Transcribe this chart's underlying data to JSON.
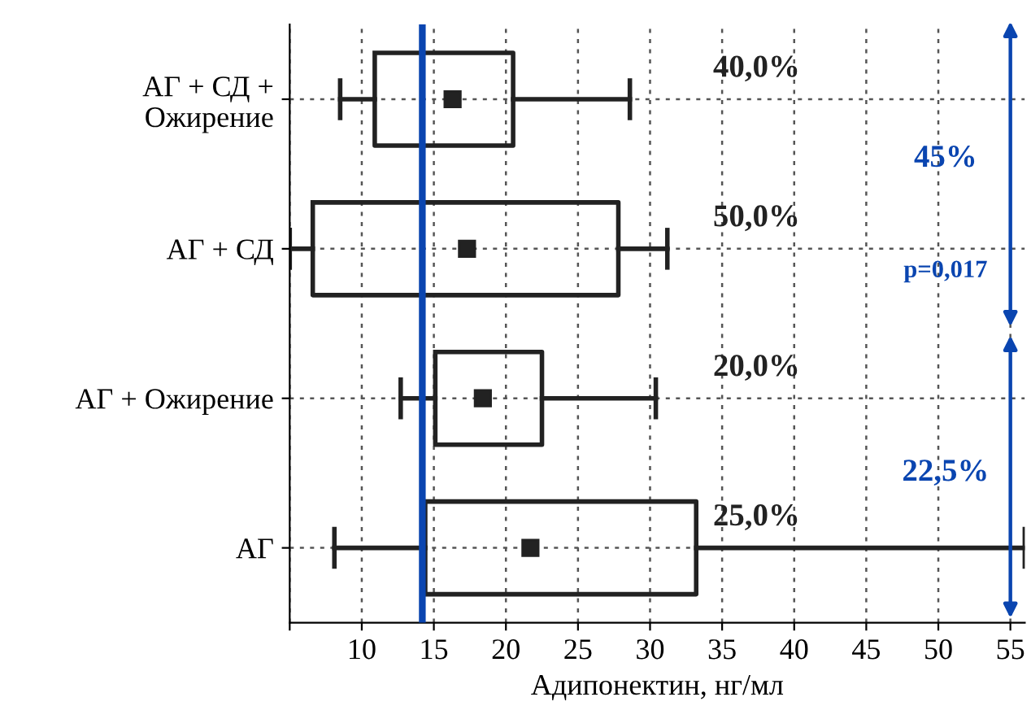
{
  "chart_data": {
    "type": "box",
    "orientation": "horizontal",
    "xlabel": "Адипонектин, нг/мл",
    "categories": [
      "АГ + СД +\nОжирение",
      "АГ + СД",
      "АГ + Ожирение",
      "АГ"
    ],
    "boxes": [
      {
        "low": 8.5,
        "q1": 10.9,
        "median": 16.3,
        "q3": 20.5,
        "high": 28.6
      },
      {
        "low": 5,
        "q1": 6.6,
        "median": 17.3,
        "q3": 27.8,
        "high": 31.2
      },
      {
        "low": 12.7,
        "q1": 15.1,
        "median": 18.4,
        "q3": 22.5,
        "high": 30.4
      },
      {
        "low": 8.1,
        "q1": 14.4,
        "median": 21.7,
        "q3": 33.2,
        "high": 56
      }
    ],
    "xlim": [
      5,
      56
    ],
    "xticks": [
      {
        "value": 5,
        "label": null
      },
      10,
      15,
      20,
      25,
      30,
      35,
      40,
      45,
      50,
      55
    ],
    "grid": true,
    "marker": "square",
    "ref_lines": [
      {
        "axis": "x",
        "value": 14.2,
        "color": "#0a45b0"
      }
    ],
    "annotations": [
      "40,0%",
      "50,0%",
      "20,0%",
      "25,0%",
      "45%",
      "p=0,017",
      "22,5%"
    ]
  }
}
